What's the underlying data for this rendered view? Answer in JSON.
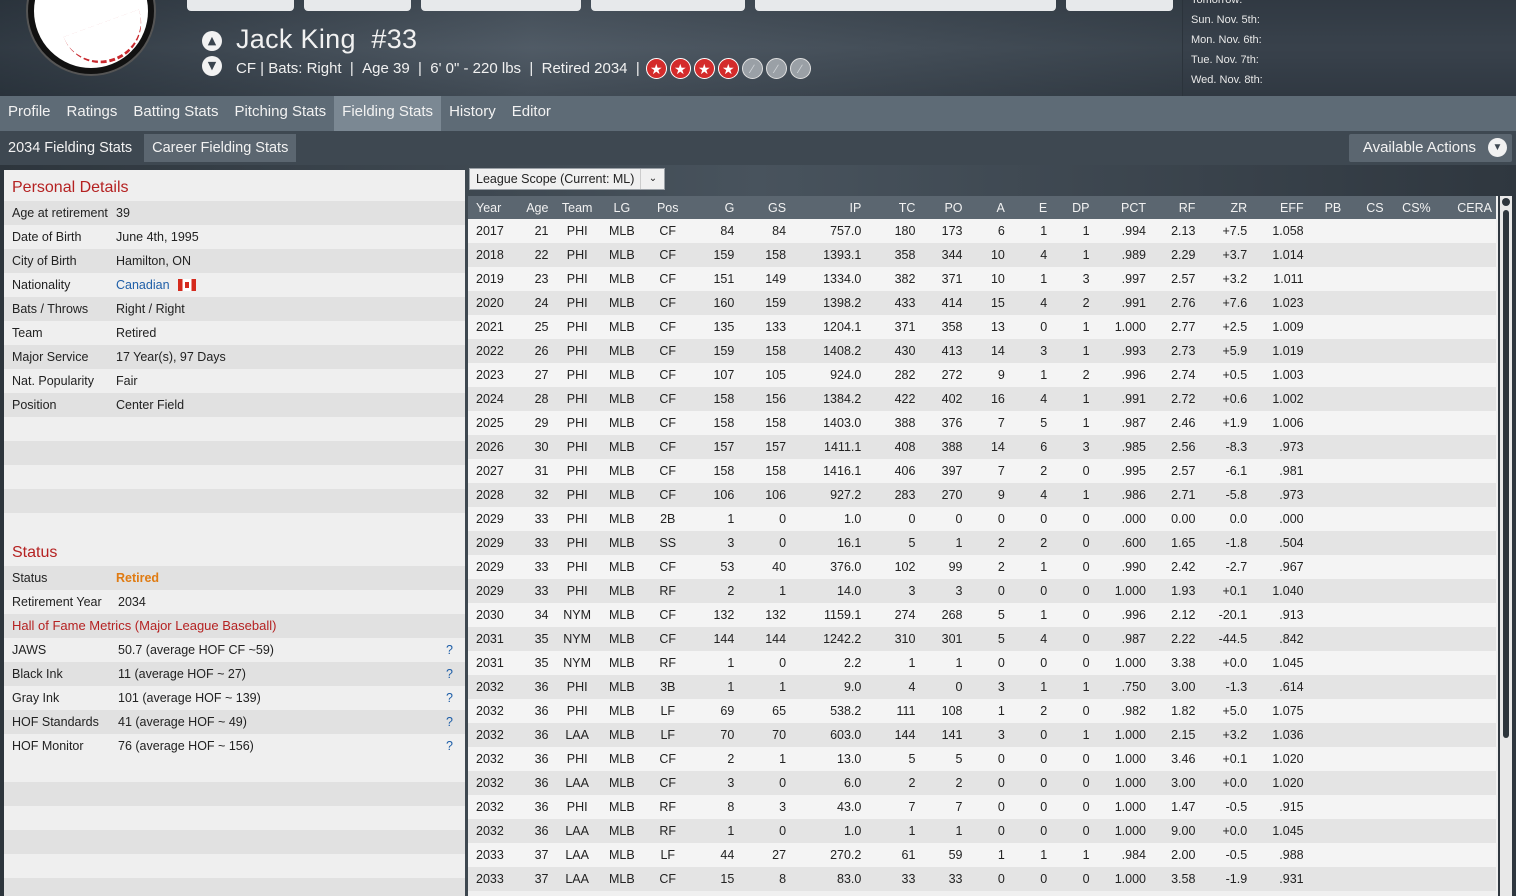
{
  "header": {
    "player_name": "Jack King",
    "player_number": "#33",
    "info_position": "CF | Bats: Right",
    "info_age": "Age 39",
    "info_size": "6' 0\" - 220 lbs",
    "info_status": "Retired 2034",
    "star_rating": {
      "filled": 4,
      "total": 7
    },
    "schedule": [
      "Tomorrow:",
      "Sun. Nov. 5th:",
      "Mon. Nov. 6th:",
      "Tue. Nov. 7th:",
      "Wed. Nov. 8th:"
    ]
  },
  "tabs": [
    "Profile",
    "Ratings",
    "Batting Stats",
    "Pitching Stats",
    "Fielding Stats",
    "History",
    "Editor"
  ],
  "subtabs": [
    "2034 Fielding Stats",
    "Career Fielding Stats"
  ],
  "actions_label": "Available Actions",
  "personal": {
    "title": "Personal Details",
    "rows": [
      {
        "k": "Age at retirement",
        "v": "39"
      },
      {
        "k": "Date of Birth",
        "v": "June 4th, 1995"
      },
      {
        "k": "City of Birth",
        "v": "Hamilton, ON"
      },
      {
        "k": "Nationality",
        "v": "Canadian"
      },
      {
        "k": "Bats / Throws",
        "v": "Right / Right"
      },
      {
        "k": "Team",
        "v": "Retired"
      },
      {
        "k": "Major Service",
        "v": "17 Year(s), 97 Days"
      },
      {
        "k": "Nat. Popularity",
        "v": "Fair"
      },
      {
        "k": "Position",
        "v": "Center Field"
      }
    ]
  },
  "status": {
    "title": "Status",
    "status_label": "Status",
    "status_value": "Retired",
    "retire_label": "Retirement Year",
    "retire_value": "2034",
    "hof_heading": "Hall of Fame Metrics (Major League Baseball)",
    "hof": [
      {
        "k": "JAWS",
        "v": "50.7 (average HOF CF ~59)"
      },
      {
        "k": "Black Ink",
        "v": "11 (average HOF ~ 27)"
      },
      {
        "k": "Gray Ink",
        "v": "101 (average HOF ~ 139)"
      },
      {
        "k": "HOF Standards",
        "v": "41 (average HOF ~ 49)"
      },
      {
        "k": "HOF Monitor",
        "v": "76 (average HOF ~ 156)"
      }
    ]
  },
  "scope_label": "League Scope  (Current: ML)",
  "fielding": {
    "columns": [
      "Year",
      "Age",
      "Team",
      "LG",
      "Pos",
      "G",
      "GS",
      "IP",
      "TC",
      "PO",
      "A",
      "E",
      "DP",
      "PCT",
      "RF",
      "ZR",
      "EFF",
      "PB",
      "CS",
      "CS%",
      "CERA"
    ],
    "rows": [
      [
        "2017",
        "21",
        "PHI",
        "MLB",
        "CF",
        "84",
        "84",
        "757.0",
        "180",
        "173",
        "6",
        "1",
        "1",
        ".994",
        "2.13",
        "+7.5",
        "1.058",
        "",
        "",
        "",
        ""
      ],
      [
        "2018",
        "22",
        "PHI",
        "MLB",
        "CF",
        "159",
        "158",
        "1393.1",
        "358",
        "344",
        "10",
        "4",
        "1",
        ".989",
        "2.29",
        "+3.7",
        "1.014",
        "",
        "",
        "",
        ""
      ],
      [
        "2019",
        "23",
        "PHI",
        "MLB",
        "CF",
        "151",
        "149",
        "1334.0",
        "382",
        "371",
        "10",
        "1",
        "3",
        ".997",
        "2.57",
        "+3.2",
        "1.011",
        "",
        "",
        "",
        ""
      ],
      [
        "2020",
        "24",
        "PHI",
        "MLB",
        "CF",
        "160",
        "159",
        "1398.2",
        "433",
        "414",
        "15",
        "4",
        "2",
        ".991",
        "2.76",
        "+7.6",
        "1.023",
        "",
        "",
        "",
        ""
      ],
      [
        "2021",
        "25",
        "PHI",
        "MLB",
        "CF",
        "135",
        "133",
        "1204.1",
        "371",
        "358",
        "13",
        "0",
        "1",
        "1.000",
        "2.77",
        "+2.5",
        "1.009",
        "",
        "",
        "",
        ""
      ],
      [
        "2022",
        "26",
        "PHI",
        "MLB",
        "CF",
        "159",
        "158",
        "1408.2",
        "430",
        "413",
        "14",
        "3",
        "1",
        ".993",
        "2.73",
        "+5.9",
        "1.019",
        "",
        "",
        "",
        ""
      ],
      [
        "2023",
        "27",
        "PHI",
        "MLB",
        "CF",
        "107",
        "105",
        "924.0",
        "282",
        "272",
        "9",
        "1",
        "2",
        ".996",
        "2.74",
        "+0.5",
        "1.003",
        "",
        "",
        "",
        ""
      ],
      [
        "2024",
        "28",
        "PHI",
        "MLB",
        "CF",
        "158",
        "156",
        "1384.2",
        "422",
        "402",
        "16",
        "4",
        "1",
        ".991",
        "2.72",
        "+0.6",
        "1.002",
        "",
        "",
        "",
        ""
      ],
      [
        "2025",
        "29",
        "PHI",
        "MLB",
        "CF",
        "158",
        "158",
        "1403.0",
        "388",
        "376",
        "7",
        "5",
        "1",
        ".987",
        "2.46",
        "+1.9",
        "1.006",
        "",
        "",
        "",
        ""
      ],
      [
        "2026",
        "30",
        "PHI",
        "MLB",
        "CF",
        "157",
        "157",
        "1411.1",
        "408",
        "388",
        "14",
        "6",
        "3",
        ".985",
        "2.56",
        "-8.3",
        ".973",
        "",
        "",
        "",
        ""
      ],
      [
        "2027",
        "31",
        "PHI",
        "MLB",
        "CF",
        "158",
        "158",
        "1416.1",
        "406",
        "397",
        "7",
        "2",
        "0",
        ".995",
        "2.57",
        "-6.1",
        ".981",
        "",
        "",
        "",
        ""
      ],
      [
        "2028",
        "32",
        "PHI",
        "MLB",
        "CF",
        "106",
        "106",
        "927.2",
        "283",
        "270",
        "9",
        "4",
        "1",
        ".986",
        "2.71",
        "-5.8",
        ".973",
        "",
        "",
        "",
        ""
      ],
      [
        "2029",
        "33",
        "PHI",
        "MLB",
        "2B",
        "1",
        "0",
        "1.0",
        "0",
        "0",
        "0",
        "0",
        "0",
        ".000",
        "0.00",
        "0.0",
        ".000",
        "",
        "",
        "",
        ""
      ],
      [
        "2029",
        "33",
        "PHI",
        "MLB",
        "SS",
        "3",
        "0",
        "16.1",
        "5",
        "1",
        "2",
        "2",
        "0",
        ".600",
        "1.65",
        "-1.8",
        ".504",
        "",
        "",
        "",
        ""
      ],
      [
        "2029",
        "33",
        "PHI",
        "MLB",
        "CF",
        "53",
        "40",
        "376.0",
        "102",
        "99",
        "2",
        "1",
        "0",
        ".990",
        "2.42",
        "-2.7",
        ".967",
        "",
        "",
        "",
        ""
      ],
      [
        "2029",
        "33",
        "PHI",
        "MLB",
        "RF",
        "2",
        "1",
        "14.0",
        "3",
        "3",
        "0",
        "0",
        "0",
        "1.000",
        "1.93",
        "+0.1",
        "1.040",
        "",
        "",
        "",
        ""
      ],
      [
        "2030",
        "34",
        "NYM",
        "MLB",
        "CF",
        "132",
        "132",
        "1159.1",
        "274",
        "268",
        "5",
        "1",
        "0",
        ".996",
        "2.12",
        "-20.1",
        ".913",
        "",
        "",
        "",
        ""
      ],
      [
        "2031",
        "35",
        "NYM",
        "MLB",
        "CF",
        "144",
        "144",
        "1242.2",
        "310",
        "301",
        "5",
        "4",
        "0",
        ".987",
        "2.22",
        "-44.5",
        ".842",
        "",
        "",
        "",
        ""
      ],
      [
        "2031",
        "35",
        "NYM",
        "MLB",
        "RF",
        "1",
        "0",
        "2.2",
        "1",
        "1",
        "0",
        "0",
        "0",
        "1.000",
        "3.38",
        "+0.0",
        "1.045",
        "",
        "",
        "",
        ""
      ],
      [
        "2032",
        "36",
        "PHI",
        "MLB",
        "3B",
        "1",
        "1",
        "9.0",
        "4",
        "0",
        "3",
        "1",
        "1",
        ".750",
        "3.00",
        "-1.3",
        ".614",
        "",
        "",
        "",
        ""
      ],
      [
        "2032",
        "36",
        "PHI",
        "MLB",
        "LF",
        "69",
        "65",
        "538.2",
        "111",
        "108",
        "1",
        "2",
        "0",
        ".982",
        "1.82",
        "+5.0",
        "1.075",
        "",
        "",
        "",
        ""
      ],
      [
        "2032",
        "36",
        "LAA",
        "MLB",
        "LF",
        "70",
        "70",
        "603.0",
        "144",
        "141",
        "3",
        "0",
        "1",
        "1.000",
        "2.15",
        "+3.2",
        "1.036",
        "",
        "",
        "",
        ""
      ],
      [
        "2032",
        "36",
        "PHI",
        "MLB",
        "CF",
        "2",
        "1",
        "13.0",
        "5",
        "5",
        "0",
        "0",
        "0",
        "1.000",
        "3.46",
        "+0.1",
        "1.020",
        "",
        "",
        "",
        ""
      ],
      [
        "2032",
        "36",
        "LAA",
        "MLB",
        "CF",
        "3",
        "0",
        "6.0",
        "2",
        "2",
        "0",
        "0",
        "0",
        "1.000",
        "3.00",
        "+0.0",
        "1.020",
        "",
        "",
        "",
        ""
      ],
      [
        "2032",
        "36",
        "PHI",
        "MLB",
        "RF",
        "8",
        "3",
        "43.0",
        "7",
        "7",
        "0",
        "0",
        "0",
        "1.000",
        "1.47",
        "-0.5",
        ".915",
        "",
        "",
        "",
        ""
      ],
      [
        "2032",
        "36",
        "LAA",
        "MLB",
        "RF",
        "1",
        "0",
        "1.0",
        "1",
        "1",
        "0",
        "0",
        "0",
        "1.000",
        "9.00",
        "+0.0",
        "1.045",
        "",
        "",
        "",
        ""
      ],
      [
        "2033",
        "37",
        "LAA",
        "MLB",
        "LF",
        "44",
        "27",
        "270.2",
        "61",
        "59",
        "1",
        "1",
        "1",
        ".984",
        "2.00",
        "-0.5",
        ".988",
        "",
        "",
        "",
        ""
      ],
      [
        "2033",
        "37",
        "LAA",
        "MLB",
        "CF",
        "15",
        "8",
        "83.0",
        "33",
        "33",
        "0",
        "0",
        "0",
        "1.000",
        "3.58",
        "-1.9",
        ".931",
        "",
        "",
        "",
        ""
      ]
    ]
  }
}
